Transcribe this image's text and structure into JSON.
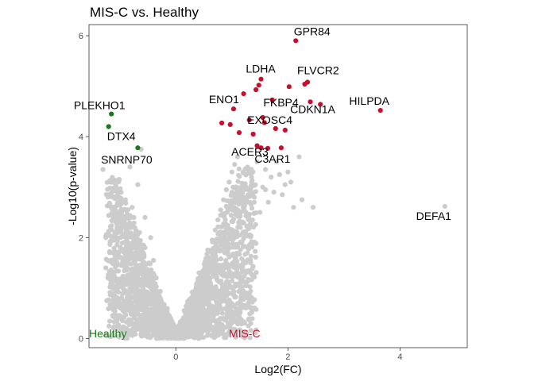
{
  "chart_data": {
    "type": "scatter",
    "title": "MIS-C vs. Healthy",
    "xlabel": "Log2(FC)",
    "ylabel": "-Log10(p-value)",
    "xlim": [
      -1.55,
      5.2
    ],
    "ylim": [
      -0.18,
      6.22
    ],
    "xticks": [
      0,
      2,
      4
    ],
    "yticks": [
      0,
      2,
      4,
      6
    ],
    "grid": false,
    "legend": "none",
    "colors": {
      "up": "#c8102e",
      "down": "#1a7a1a",
      "ns": "#cccccc"
    },
    "corner_labels": {
      "left": "Healthy",
      "right": "MIS-C"
    },
    "background_points": {
      "x": [
        -1.3,
        -1.25,
        -1.18,
        -1.12,
        -1.08,
        -1.02,
        -0.98,
        -0.95,
        -0.9,
        -0.85,
        -0.82,
        -0.78,
        -0.72,
        -0.68,
        -0.62,
        -0.58,
        -0.55,
        -0.5,
        -0.45,
        -0.4,
        -0.35,
        -0.3,
        -0.25,
        -0.2,
        -0.15,
        -0.1,
        -0.06,
        -0.75,
        -0.65,
        -0.55,
        -0.48,
        -0.42,
        -0.36,
        -0.31,
        -0.27,
        -0.22,
        -0.18,
        -0.14,
        -0.1,
        -0.07,
        -0.05,
        -0.85,
        -0.7,
        -0.6,
        -0.45,
        -0.38,
        -0.33,
        -0.28,
        -0.22,
        -0.16,
        -0.12,
        -0.08,
        -0.05,
        0.06,
        0.1,
        0.15,
        0.2,
        0.25,
        0.3,
        0.35,
        0.4,
        0.45,
        0.5,
        0.55,
        0.6,
        0.65,
        0.7,
        0.75,
        0.8,
        0.85,
        0.9,
        0.95,
        1.0,
        1.05,
        1.1,
        1.15,
        1.2,
        1.25,
        1.3,
        1.35,
        1.4,
        1.45,
        1.5,
        1.55,
        1.6,
        1.65,
        1.7,
        1.75,
        1.8,
        1.85,
        1.9,
        1.95,
        2.0,
        2.05,
        2.1,
        2.2,
        2.25,
        0.08,
        0.12,
        0.18,
        0.24,
        0.3,
        0.38,
        0.45,
        0.52,
        0.6,
        0.68,
        0.78,
        0.9,
        1.0,
        1.12,
        1.25,
        1.4,
        1.6,
        1.85,
        0.06,
        0.1,
        0.14,
        0.2,
        0.28,
        0.36,
        0.46,
        0.58,
        0.72,
        0.88,
        -0.06,
        -0.1,
        -0.14,
        -0.2,
        -0.28,
        -0.36,
        -0.46,
        -0.58,
        -0.72,
        -0.88,
        -1.05,
        -1.25,
        2.45,
        4.8
      ],
      "y": [
        3.35,
        2.0,
        1.7,
        1.05,
        2.55,
        3.15,
        2.3,
        1.5,
        2.75,
        1.9,
        3.4,
        2.6,
        1.3,
        3.05,
        3.75,
        1.85,
        2.4,
        1.1,
        2.0,
        1.55,
        1.2,
        0.85,
        0.6,
        0.4,
        0.25,
        0.12,
        0.05,
        2.4,
        2.1,
        1.8,
        1.5,
        1.25,
        1.0,
        0.8,
        0.62,
        0.45,
        0.33,
        0.22,
        0.14,
        0.08,
        0.03,
        1.2,
        1.05,
        0.9,
        0.7,
        0.55,
        0.45,
        0.36,
        0.27,
        0.18,
        0.12,
        0.07,
        0.03,
        0.04,
        0.1,
        0.22,
        0.35,
        0.5,
        0.65,
        0.8,
        0.98,
        1.15,
        1.35,
        1.55,
        1.75,
        1.95,
        2.15,
        2.35,
        2.55,
        2.75,
        2.95,
        3.1,
        3.3,
        3.45,
        3.6,
        2.2,
        2.6,
        3.0,
        2.4,
        3.2,
        2.8,
        3.5,
        2.5,
        3.0,
        3.35,
        2.7,
        3.2,
        2.9,
        3.5,
        3.25,
        2.85,
        3.05,
        3.3,
        3.1,
        2.6,
        3.6,
        2.75,
        0.12,
        0.25,
        0.4,
        0.55,
        0.72,
        0.88,
        1.05,
        1.2,
        1.38,
        1.55,
        1.75,
        1.95,
        2.1,
        2.3,
        2.5,
        2.7,
        2.95,
        3.25,
        0.02,
        0.06,
        0.1,
        0.16,
        0.24,
        0.32,
        0.44,
        0.58,
        0.74,
        0.92,
        0.02,
        0.06,
        0.1,
        0.16,
        0.24,
        0.32,
        0.44,
        0.58,
        0.74,
        0.92,
        1.12,
        1.4,
        2.6,
        2.62
      ]
    },
    "down_points": {
      "x": [
        -1.15,
        -1.2,
        -0.68
      ],
      "y": [
        4.45,
        4.2,
        3.78
      ]
    },
    "up_points": {
      "x": [
        0.82,
        0.97,
        1.03,
        1.13,
        1.21,
        1.31,
        1.38,
        1.43,
        1.48,
        1.52,
        1.55,
        1.58,
        1.64,
        1.72,
        1.78,
        1.88,
        1.95,
        2.02,
        2.14,
        2.3,
        2.35,
        2.4,
        2.58,
        3.65,
        1.45,
        1.52
      ],
      "y": [
        4.27,
        4.24,
        4.55,
        4.08,
        4.85,
        4.33,
        4.05,
        4.93,
        5.02,
        5.14,
        4.38,
        4.28,
        3.77,
        4.73,
        4.16,
        3.78,
        4.13,
        4.99,
        5.9,
        5.04,
        5.08,
        4.69,
        4.64,
        4.52,
        3.82,
        3.78
      ]
    },
    "annotations": [
      {
        "text": "GPR84",
        "x": 2.02,
        "y": 5.9
      },
      {
        "text": "LDHA",
        "x": 1.64,
        "y": 5.14
      },
      {
        "text": "FLVCR2",
        "x": 2.35,
        "y": 5.08
      },
      {
        "text": "FKBP4",
        "x": 1.96,
        "y": 4.73
      },
      {
        "text": "HILPDA",
        "x": 3.65,
        "y": 4.52
      },
      {
        "text": "ENO1",
        "x": 1.03,
        "y": 4.55
      },
      {
        "text": "EXOSC4",
        "x": 1.72,
        "y": 4.38
      },
      {
        "text": "CDKN1A",
        "x": 2.4,
        "y": 4.64
      },
      {
        "text": "PLEKHO1",
        "x": -1.15,
        "y": 4.45
      },
      {
        "text": "DTX4",
        "x": -1.2,
        "y": 4.2
      },
      {
        "text": "ACER3",
        "x": 1.52,
        "y": 3.78
      },
      {
        "text": "C3AR1",
        "x": 1.88,
        "y": 3.78
      },
      {
        "text": "SNRNP70",
        "x": -0.68,
        "y": 3.78
      },
      {
        "text": "DEFA1",
        "x": 4.8,
        "y": 2.62
      }
    ]
  }
}
